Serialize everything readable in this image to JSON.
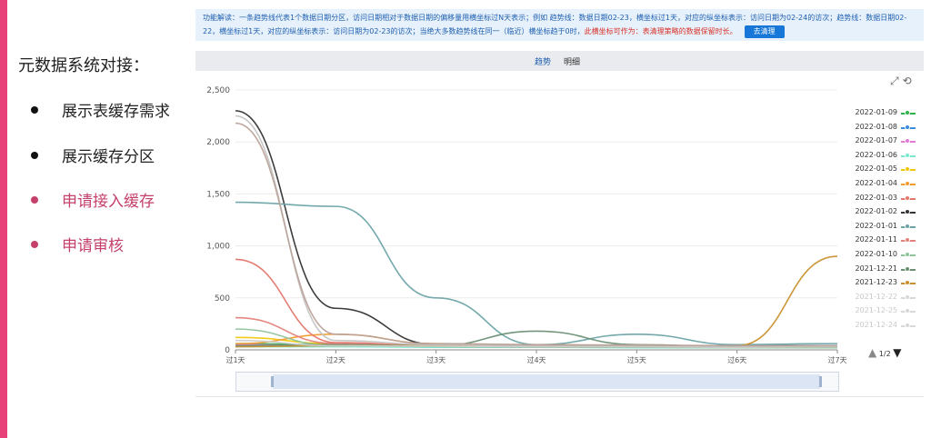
{
  "slide": {
    "heading": "元数据系统对接：",
    "bullets": [
      {
        "text": "展示表缓存需求",
        "color": "#222222"
      },
      {
        "text": "展示缓存分区",
        "color": "#222222"
      },
      {
        "text": "申请接入缓存",
        "color": "#c5416b"
      },
      {
        "text": "申请审核",
        "color": "#c5416b"
      }
    ],
    "accent_color": "#e8417a"
  },
  "notice": {
    "text": "功能解读：一条趋势线代表1个数据日期分区，访问日期相对于数据日期的偏移量用横坐标过N天表示；例如 趋势线：数据日期02-23，横坐标过1天，对应的纵坐标表示：访问日期为02-24的访次；趋势线：数据日期02-22，横坐标过1天，对应的纵坐标表示：访问日期为02-23的访次；当绝大多数趋势线在同一（临近）横坐标趋于0时，",
    "highlight": "此横坐标可作为：表清理策略的数据保留时长。",
    "button_label": "去清理"
  },
  "tabs": {
    "trend": "趋势",
    "detail": "明细"
  },
  "toolbox": {
    "icons": [
      "zoom-icon",
      "zoom-reset-icon"
    ],
    "glyphs": "⤢ ⟲"
  },
  "pager": {
    "prev": "▲",
    "page": "1/2",
    "next": "▼"
  },
  "chart_data": {
    "type": "line",
    "categories": [
      "过1天",
      "过2天",
      "过3天",
      "过4天",
      "过5天",
      "过6天",
      "过7天"
    ],
    "ylim": [
      0,
      2500
    ],
    "yticks": [
      "0",
      "500",
      "1,000",
      "1,500",
      "2,000",
      "2,500"
    ],
    "ytick_values": [
      0,
      500,
      1000,
      1500,
      2000,
      2500
    ],
    "legend_position": "right",
    "series": [
      {
        "name": "2022-01-09",
        "color": "#2db34a",
        "values": [
          60,
          50,
          40,
          30,
          30,
          25,
          30
        ]
      },
      {
        "name": "2022-01-08",
        "color": "#3b8de0",
        "values": [
          40,
          40,
          30,
          25,
          25,
          20,
          25
        ]
      },
      {
        "name": "2022-01-07",
        "color": "#e27ad6",
        "values": [
          50,
          40,
          35,
          30,
          30,
          25,
          25
        ]
      },
      {
        "name": "2022-01-06",
        "color": "#7ae8d0",
        "values": [
          30,
          30,
          25,
          25,
          20,
          20,
          20
        ]
      },
      {
        "name": "2022-01-05",
        "color": "#f2c80f",
        "values": [
          120,
          60,
          40,
          30,
          30,
          30,
          30
        ]
      },
      {
        "name": "2022-01-04",
        "color": "#f39b2e",
        "values": [
          60,
          150,
          60,
          40,
          40,
          30,
          30
        ]
      },
      {
        "name": "2022-01-03",
        "color": "#e5766c",
        "values": [
          870,
          70,
          40,
          30,
          30,
          25,
          25
        ]
      },
      {
        "name": "2022-01-02",
        "color": "#333333",
        "values": [
          2300,
          400,
          50,
          40,
          40,
          40,
          40
        ]
      },
      {
        "name": "2022-01-01",
        "color": "#6ba3a8",
        "values": [
          1420,
          1380,
          500,
          50,
          150,
          50,
          60
        ]
      },
      {
        "name": "2022-01-11",
        "color": "#e2817a",
        "values": [
          310,
          60,
          40,
          30,
          30,
          25,
          25
        ]
      },
      {
        "name": "2022-01-10",
        "color": "#8ec49a",
        "values": [
          200,
          40,
          30,
          25,
          25,
          20,
          20
        ]
      },
      {
        "name": "2021-12-21",
        "color": "#6c8f74",
        "values": [
          40,
          50,
          40,
          180,
          50,
          30,
          40
        ]
      },
      {
        "name": "2021-12-23",
        "color": "#c9902e",
        "values": [
          30,
          40,
          40,
          50,
          40,
          40,
          900
        ]
      },
      {
        "name": "2021-12-22",
        "color": "#cfcfcf",
        "values": [
          90,
          40,
          35,
          30,
          30,
          25,
          30
        ]
      },
      {
        "name": "2021-12-25",
        "color": "#c4c4c4",
        "values": [
          2250,
          90,
          50,
          40,
          40,
          35,
          35
        ]
      },
      {
        "name": "2021-12-24",
        "color": "#b9a29a",
        "values": [
          2180,
          150,
          60,
          50,
          45,
          40,
          40
        ]
      }
    ],
    "legend_shown": [
      "2022-01-09",
      "2022-01-08",
      "2022-01-07",
      "2022-01-06",
      "2022-01-05",
      "2022-01-04",
      "2022-01-03",
      "2022-01-02",
      "2022-01-01",
      "2022-01-11",
      "2022-01-10",
      "2021-12-21",
      "2021-12-23",
      "2021-12-22",
      "2021-12-25",
      "2021-12-24"
    ],
    "legend_faded": [
      "2021-12-22",
      "2021-12-25",
      "2021-12-24"
    ]
  }
}
